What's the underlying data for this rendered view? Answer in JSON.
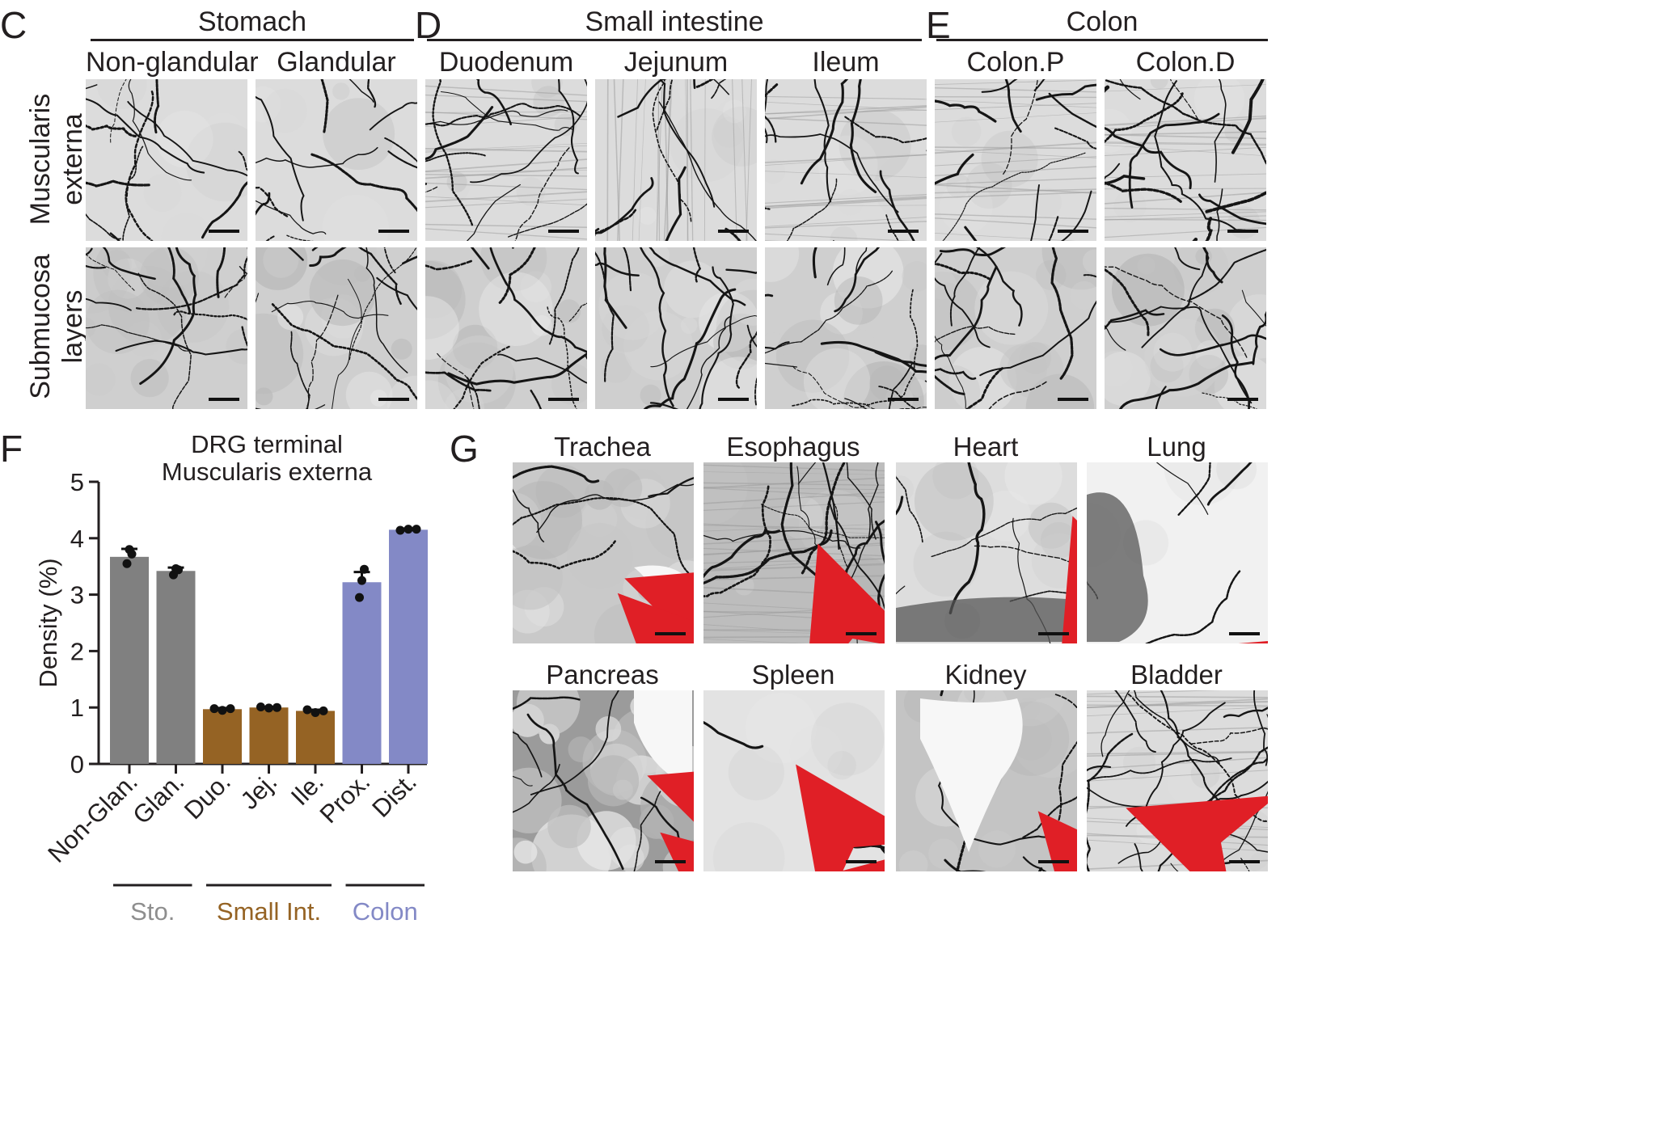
{
  "panels": {
    "C": "C",
    "D": "D",
    "E": "E",
    "F": "F",
    "G": "G"
  },
  "groups": {
    "stomach": "Stomach",
    "small_intestine": "Small intestine",
    "colon": "Colon"
  },
  "regions": [
    "Non-glandular",
    "Glandular",
    "Duodenum",
    "Jejunum",
    "Ileum",
    "Colon.P",
    "Colon.D"
  ],
  "row_labels": {
    "muscularis": [
      "Muscularis",
      "externa"
    ],
    "submucosa": [
      "Submucosa",
      "layers"
    ]
  },
  "organs": [
    "Trachea",
    "Esophagus",
    "Heart",
    "Lung",
    "Pancreas",
    "Spleen",
    "Kidney",
    "Bladder"
  ],
  "chart_data": {
    "type": "bar",
    "title_lines": [
      "DRG terminal",
      "Muscularis externa"
    ],
    "ylabel": "Density (%)",
    "xlabel": "",
    "ylim": [
      0,
      5
    ],
    "yticks": [
      0,
      1,
      2,
      3,
      4,
      5
    ],
    "categories": [
      "Non-Glan.",
      "Glan.",
      "Duo.",
      "Jej.",
      "Ile.",
      "Prox.",
      "Dist."
    ],
    "values": [
      3.67,
      3.42,
      0.97,
      1.0,
      0.94,
      3.22,
      4.15
    ],
    "sem": [
      0.14,
      0.06,
      0.02,
      0.01,
      0.02,
      0.18,
      0.02
    ],
    "points": [
      [
        3.55,
        3.8,
        3.72
      ],
      [
        3.35,
        3.46,
        3.44
      ],
      [
        0.98,
        0.95,
        0.98
      ],
      [
        1.01,
        0.99,
        1.0
      ],
      [
        0.96,
        0.91,
        0.94
      ],
      [
        2.95,
        3.25,
        3.45
      ],
      [
        4.14,
        4.16,
        4.16
      ]
    ],
    "bar_colors": [
      "#808080",
      "#808080",
      "#956324",
      "#956324",
      "#956324",
      "#8389c6",
      "#8389c6"
    ],
    "groups": [
      {
        "label": "Sto.",
        "color": "#8e8e8e"
      },
      {
        "label": "Small Int.",
        "color": "#956324"
      },
      {
        "label": "Colon",
        "color": "#8389c6"
      }
    ]
  }
}
